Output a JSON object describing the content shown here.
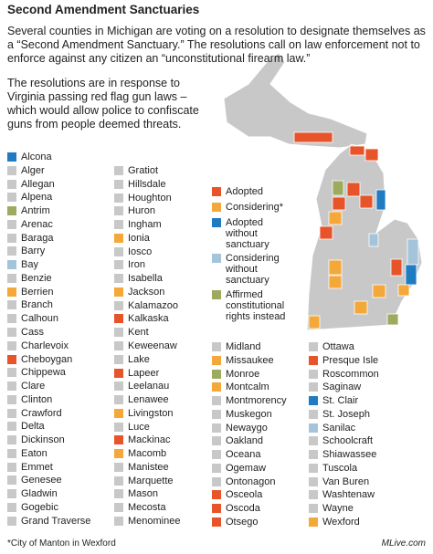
{
  "title": "Second Amendment Sanctuaries",
  "intro": "Several counties in Michigan are voting on a resolution to designate themselves as a “Second Amendment Sanctuary.” The resolutions call on law enforcement not to enforce against any citizen an “unconstitutional firearm law.”",
  "note": "The resolutions are in response to Virginia passing red flag gun laws – which would allow police to confiscate guns from people deemed threats.",
  "legend": [
    {
      "label": "Adopted",
      "color": "#e8542a"
    },
    {
      "label": "Considering*",
      "color": "#f4a83a"
    },
    {
      "label": "Adopted without sanctuary",
      "color": "#1f7cc2"
    },
    {
      "label": "Considering without sanctuary",
      "color": "#a4c4dc"
    },
    {
      "label": "Affirmed constitutional rights instead",
      "color": "#9cab5e"
    }
  ],
  "columns": [
    [
      {
        "name": "Alcona",
        "color": "#1f7cc2"
      },
      {
        "name": "Alger",
        "color": "#c8c8c8"
      },
      {
        "name": "Allegan",
        "color": "#c8c8c8"
      },
      {
        "name": "Alpena",
        "color": "#c8c8c8"
      },
      {
        "name": "Antrim",
        "color": "#9cab5e"
      },
      {
        "name": "Arenac",
        "color": "#c8c8c8"
      },
      {
        "name": "Baraga",
        "color": "#c8c8c8"
      },
      {
        "name": "Barry",
        "color": "#c8c8c8"
      },
      {
        "name": "Bay",
        "color": "#a4c4dc"
      },
      {
        "name": "Benzie",
        "color": "#c8c8c8"
      },
      {
        "name": "Berrien",
        "color": "#f4a83a"
      },
      {
        "name": "Branch",
        "color": "#c8c8c8"
      },
      {
        "name": "Calhoun",
        "color": "#c8c8c8"
      },
      {
        "name": "Cass",
        "color": "#c8c8c8"
      },
      {
        "name": "Charlevoix",
        "color": "#c8c8c8"
      },
      {
        "name": "Cheboygan",
        "color": "#e8542a"
      },
      {
        "name": "Chippewa",
        "color": "#c8c8c8"
      },
      {
        "name": "Clare",
        "color": "#c8c8c8"
      },
      {
        "name": "Clinton",
        "color": "#c8c8c8"
      },
      {
        "name": "Crawford",
        "color": "#c8c8c8"
      },
      {
        "name": "Delta",
        "color": "#c8c8c8"
      },
      {
        "name": "Dickinson",
        "color": "#c8c8c8"
      },
      {
        "name": "Eaton",
        "color": "#c8c8c8"
      },
      {
        "name": "Emmet",
        "color": "#c8c8c8"
      },
      {
        "name": "Genesee",
        "color": "#c8c8c8"
      },
      {
        "name": "Gladwin",
        "color": "#c8c8c8"
      },
      {
        "name": "Gogebic",
        "color": "#c8c8c8"
      },
      {
        "name": "Grand Traverse",
        "color": "#c8c8c8"
      }
    ],
    [
      {
        "name": "Gratiot",
        "color": "#c8c8c8"
      },
      {
        "name": "Hillsdale",
        "color": "#c8c8c8"
      },
      {
        "name": "Houghton",
        "color": "#c8c8c8"
      },
      {
        "name": "Huron",
        "color": "#c8c8c8"
      },
      {
        "name": "Ingham",
        "color": "#c8c8c8"
      },
      {
        "name": "Ionia",
        "color": "#f4a83a"
      },
      {
        "name": "Iosco",
        "color": "#c8c8c8"
      },
      {
        "name": "Iron",
        "color": "#c8c8c8"
      },
      {
        "name": "Isabella",
        "color": "#c8c8c8"
      },
      {
        "name": "Jackson",
        "color": "#f4a83a"
      },
      {
        "name": "Kalamazoo",
        "color": "#c8c8c8"
      },
      {
        "name": "Kalkaska",
        "color": "#e8542a"
      },
      {
        "name": "Kent",
        "color": "#c8c8c8"
      },
      {
        "name": "Keweenaw",
        "color": "#c8c8c8"
      },
      {
        "name": "Lake",
        "color": "#c8c8c8"
      },
      {
        "name": "Lapeer",
        "color": "#e8542a"
      },
      {
        "name": "Leelanau",
        "color": "#c8c8c8"
      },
      {
        "name": "Lenawee",
        "color": "#c8c8c8"
      },
      {
        "name": "Livingston",
        "color": "#f4a83a"
      },
      {
        "name": "Luce",
        "color": "#c8c8c8"
      },
      {
        "name": "Mackinac",
        "color": "#e8542a"
      },
      {
        "name": "Macomb",
        "color": "#f4a83a"
      },
      {
        "name": "Manistee",
        "color": "#c8c8c8"
      },
      {
        "name": "Marquette",
        "color": "#c8c8c8"
      },
      {
        "name": "Mason",
        "color": "#c8c8c8"
      },
      {
        "name": "Mecosta",
        "color": "#c8c8c8"
      },
      {
        "name": "Menominee",
        "color": "#c8c8c8"
      }
    ],
    [
      {
        "name": "Midland",
        "color": "#c8c8c8"
      },
      {
        "name": "Missaukee",
        "color": "#f4a83a"
      },
      {
        "name": "Monroe",
        "color": "#9cab5e"
      },
      {
        "name": "Montcalm",
        "color": "#f4a83a"
      },
      {
        "name": "Montmorency",
        "color": "#c8c8c8"
      },
      {
        "name": "Muskegon",
        "color": "#c8c8c8"
      },
      {
        "name": "Newaygo",
        "color": "#c8c8c8"
      },
      {
        "name": "Oakland",
        "color": "#c8c8c8"
      },
      {
        "name": "Oceana",
        "color": "#c8c8c8"
      },
      {
        "name": "Ogemaw",
        "color": "#c8c8c8"
      },
      {
        "name": "Ontonagon",
        "color": "#c8c8c8"
      },
      {
        "name": "Osceola",
        "color": "#e8542a"
      },
      {
        "name": "Oscoda",
        "color": "#e8542a"
      },
      {
        "name": "Otsego",
        "color": "#e8542a"
      }
    ],
    [
      {
        "name": "Ottawa",
        "color": "#c8c8c8"
      },
      {
        "name": "Presque Isle",
        "color": "#e8542a"
      },
      {
        "name": "Roscommon",
        "color": "#c8c8c8"
      },
      {
        "name": "Saginaw",
        "color": "#c8c8c8"
      },
      {
        "name": "St. Clair",
        "color": "#1f7cc2"
      },
      {
        "name": "St. Joseph",
        "color": "#c8c8c8"
      },
      {
        "name": "Sanilac",
        "color": "#a4c4dc"
      },
      {
        "name": "Schoolcraft",
        "color": "#c8c8c8"
      },
      {
        "name": "Shiawassee",
        "color": "#c8c8c8"
      },
      {
        "name": "Tuscola",
        "color": "#c8c8c8"
      },
      {
        "name": "Van Buren",
        "color": "#c8c8c8"
      },
      {
        "name": "Washtenaw",
        "color": "#c8c8c8"
      },
      {
        "name": "Wayne",
        "color": "#c8c8c8"
      },
      {
        "name": "Wexford",
        "color": "#f4a83a"
      }
    ]
  ],
  "footnote": "*City of Manton in Wexford",
  "credit": "MLive.com"
}
